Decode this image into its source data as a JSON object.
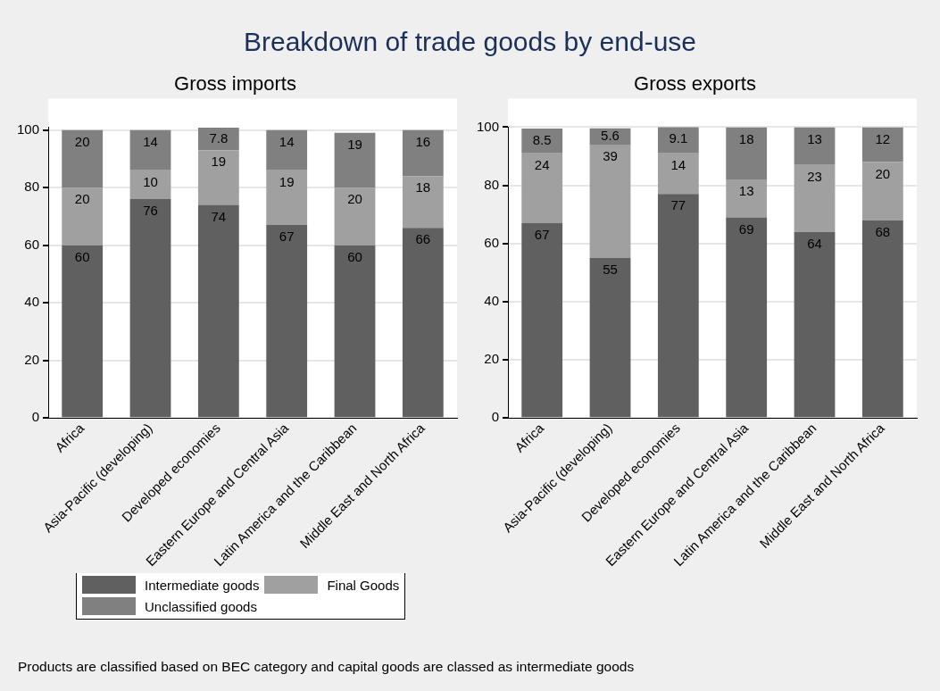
{
  "chart_data": [
    {
      "type": "bar",
      "title": "Breakdown of trade goods by end-use",
      "subtitle": "Gross imports",
      "categories": [
        "Africa",
        "Asia-Pacific (developing)",
        "Developed economies",
        "Eastern Europe and Central Asia",
        "Latin America and the Caribbean",
        "Middle East and North Africa"
      ],
      "series": [
        {
          "name": "Intermediate goods",
          "color": "#606060",
          "values": [
            60,
            76,
            74,
            67,
            60,
            66
          ]
        },
        {
          "name": "Final Goods",
          "color": "#a0a0a0",
          "values": [
            20,
            10,
            19,
            19,
            20,
            18
          ]
        },
        {
          "name": "Unclassified goods",
          "color": "#808080",
          "values": [
            20,
            14,
            7.8,
            14,
            19,
            16
          ]
        }
      ],
      "stacked": true,
      "ylim": [
        0,
        101
      ],
      "yticks": [
        0,
        20,
        40,
        60,
        80,
        100
      ],
      "grid": "y",
      "data_labels": true,
      "legend": "bottom left",
      "annotations": [
        "Products are classified based on BEC category and capital goods are classed as intermediate goods"
      ]
    },
    {
      "type": "bar",
      "title": "Gross exports",
      "categories": [
        "Africa",
        "Asia-Pacific (developing)",
        "Developed economies",
        "Eastern Europe and Central Asia",
        "Latin America and the Caribbean",
        "Middle East and North Africa"
      ],
      "series": [
        {
          "color": "#606060",
          "values": [
            67,
            55,
            77,
            69,
            64,
            68
          ]
        },
        {
          "color": "#a0a0a0",
          "values": [
            24,
            39,
            14,
            13,
            23,
            20
          ]
        },
        {
          "color": "#808080",
          "values": [
            8.5,
            5.6,
            9.1,
            18,
            13,
            12
          ]
        }
      ],
      "stacked": true,
      "ylim": [
        0,
        100
      ],
      "yticks": [
        0,
        20,
        40,
        60,
        80,
        100
      ],
      "grid": "y",
      "data_labels": true
    }
  ]
}
